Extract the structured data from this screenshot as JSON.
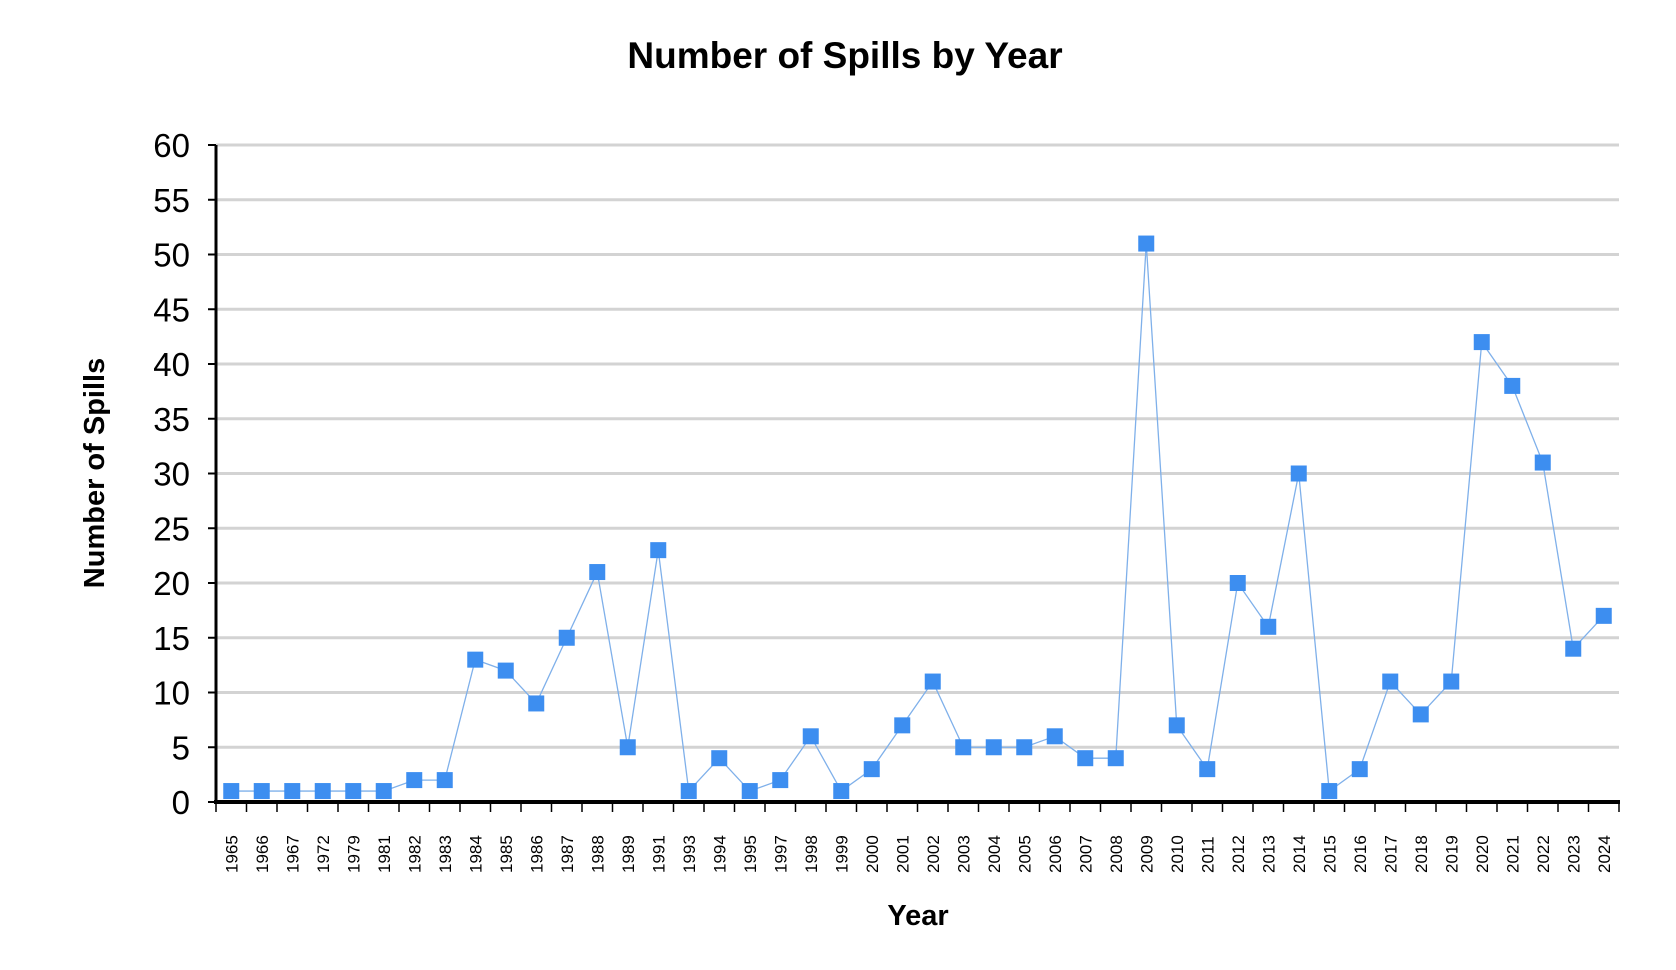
{
  "chart_data": {
    "type": "line",
    "title": "Number of Spills by Year",
    "xlabel": "Year",
    "ylabel": "Number of Spills",
    "ylim": [
      0,
      60
    ],
    "yticks": [
      0,
      5,
      10,
      15,
      20,
      25,
      30,
      35,
      40,
      45,
      50,
      55,
      60
    ],
    "grid": true,
    "legend": "none",
    "colors": {
      "series": "#3d8ef0",
      "line": "#7fb0ea",
      "grid": "#d3d3d3",
      "axis": "#000000"
    },
    "categories": [
      "1965",
      "1966",
      "1967",
      "1972",
      "1979",
      "1981",
      "1982",
      "1983",
      "1984",
      "1985",
      "1986",
      "1987",
      "1988",
      "1989",
      "1991",
      "1993",
      "1994",
      "1995",
      "1997",
      "1998",
      "1999",
      "2000",
      "2001",
      "2002",
      "2003",
      "2004",
      "2005",
      "2006",
      "2007",
      "2008",
      "2009",
      "2010",
      "2011",
      "2012",
      "2013",
      "2014",
      "2015",
      "2016",
      "2017",
      "2018",
      "2019",
      "2020",
      "2021",
      "2022",
      "2023",
      "2024"
    ],
    "series": [
      {
        "name": "Number of Spills",
        "values": [
          1,
          1,
          1,
          1,
          1,
          1,
          2,
          2,
          13,
          12,
          9,
          15,
          21,
          5,
          23,
          1,
          4,
          1,
          2,
          6,
          1,
          3,
          7,
          11,
          5,
          5,
          5,
          6,
          4,
          4,
          51,
          7,
          3,
          20,
          16,
          30,
          1,
          3,
          11,
          8,
          11,
          42,
          38,
          31,
          14,
          17
        ]
      }
    ]
  }
}
